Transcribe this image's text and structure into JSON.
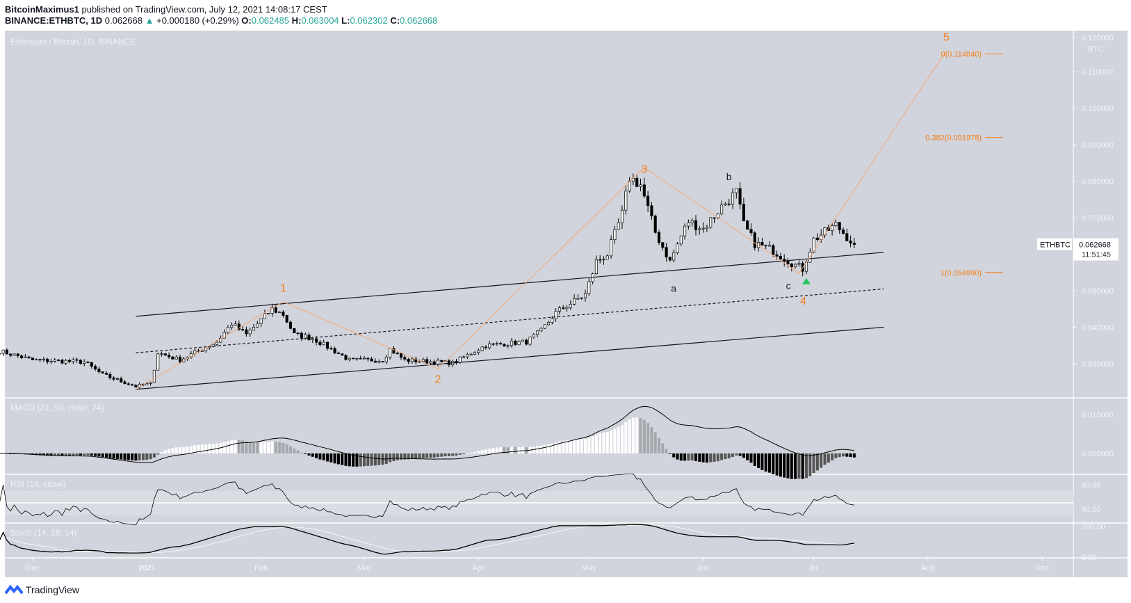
{
  "header": {
    "publisher": "BitcoinMaximus1",
    "published_text": "published on TradingView.com, July 12, 2021 14:08:17 CEST",
    "symbol": "BINANCE:ETHBTC, 1D",
    "last": "0.062668",
    "change": "+0.000180 (+0.29%)",
    "o": "0.062485",
    "h": "0.063004",
    "l": "0.062302",
    "c": "0.062668"
  },
  "footer": {
    "logo_text": "TradingView"
  },
  "chart_data": {
    "type": "candlestick",
    "title": "Ethereum / Bitcoin, 1D, BINANCE",
    "currency": "BTC",
    "y_ticks": [
      "0.120000",
      "0.110000",
      "0.100000",
      "0.090000",
      "0.080000",
      "0.070000",
      "0.050000",
      "0.040000",
      "0.030000"
    ],
    "ylim": [
      0.021,
      0.121
    ],
    "x_ticks": [
      {
        "label": "Dec",
        "date": "2020-12-01"
      },
      {
        "label": "2021",
        "date": "2021-01-01"
      },
      {
        "label": "Feb",
        "date": "2021-02-01"
      },
      {
        "label": "Mar",
        "date": "2021-03-01"
      },
      {
        "label": "Apr",
        "date": "2021-04-01"
      },
      {
        "label": "May",
        "date": "2021-05-01"
      },
      {
        "label": "Jun",
        "date": "2021-06-01"
      },
      {
        "label": "Jul",
        "date": "2021-07-01"
      },
      {
        "label": "Aug",
        "date": "2021-08-01"
      },
      {
        "label": "Sep",
        "date": "2021-09-01"
      }
    ],
    "close_path": [
      [
        "2020-11-22",
        0.0335
      ],
      [
        "2020-12-01",
        0.031
      ],
      [
        "2020-12-15",
        0.0305
      ],
      [
        "2020-12-20",
        0.027
      ],
      [
        "2020-12-29",
        0.0238
      ],
      [
        "2021-01-02",
        0.0245
      ],
      [
        "2021-01-04",
        0.033
      ],
      [
        "2021-01-10",
        0.031
      ],
      [
        "2021-01-20",
        0.036
      ],
      [
        "2021-01-24",
        0.041
      ],
      [
        "2021-01-28",
        0.038
      ],
      [
        "2021-02-04",
        0.045
      ],
      [
        "2021-02-07",
        0.0435
      ],
      [
        "2021-02-10",
        0.038
      ],
      [
        "2021-02-15",
        0.037
      ],
      [
        "2021-02-20",
        0.034
      ],
      [
        "2021-02-25",
        0.031
      ],
      [
        "2021-03-06",
        0.031
      ],
      [
        "2021-03-08",
        0.034
      ],
      [
        "2021-03-12",
        0.031
      ],
      [
        "2021-03-25",
        0.0302
      ],
      [
        "2021-04-01",
        0.034
      ],
      [
        "2021-04-03",
        0.035
      ],
      [
        "2021-04-14",
        0.036
      ],
      [
        "2021-04-18",
        0.039
      ],
      [
        "2021-04-22",
        0.044
      ],
      [
        "2021-04-30",
        0.049
      ],
      [
        "2021-05-03",
        0.058
      ],
      [
        "2021-05-06",
        0.06
      ],
      [
        "2021-05-10",
        0.071
      ],
      [
        "2021-05-12",
        0.081
      ],
      [
        "2021-05-15",
        0.079
      ],
      [
        "2021-05-19",
        0.066
      ],
      [
        "2021-05-23",
        0.058
      ],
      [
        "2021-05-26",
        0.065
      ],
      [
        "2021-05-28",
        0.069
      ],
      [
        "2021-06-01",
        0.067
      ],
      [
        "2021-06-06",
        0.073
      ],
      [
        "2021-06-10",
        0.077
      ],
      [
        "2021-06-12",
        0.068
      ],
      [
        "2021-06-15",
        0.063
      ],
      [
        "2021-06-20",
        0.061
      ],
      [
        "2021-06-26",
        0.057
      ],
      [
        "2021-06-28",
        0.056
      ],
      [
        "2021-07-01",
        0.064
      ],
      [
        "2021-07-07",
        0.068
      ],
      [
        "2021-07-12",
        0.062668
      ]
    ],
    "last_price_label": {
      "symbol": "ETHBTC",
      "price": "0.062668",
      "countdown": "11:51:45"
    },
    "channel": {
      "upper": [
        [
          "2020-12-29",
          0.043
        ],
        [
          "2021-07-20",
          0.0605
        ]
      ],
      "middle": [
        [
          "2020-12-29",
          0.033
        ],
        [
          "2021-07-20",
          0.0505
        ]
      ],
      "lower": [
        [
          "2020-12-29",
          0.023
        ],
        [
          "2021-07-20",
          0.04
        ]
      ]
    },
    "wave_path": [
      [
        "2020-12-29",
        0.023
      ],
      [
        "2021-02-07",
        0.047
      ],
      [
        "2021-03-21",
        0.0286
      ],
      [
        "2021-05-16",
        0.0838
      ],
      [
        "2021-06-27",
        0.0548
      ],
      [
        "2021-08-06",
        0.1158
      ]
    ],
    "wave_labels": [
      {
        "text": "1",
        "date": "2021-02-07",
        "price": 0.0497,
        "color": "#f57f17"
      },
      {
        "text": "2",
        "date": "2021-03-21",
        "price": 0.0248,
        "color": "#f57f17"
      },
      {
        "text": "3",
        "date": "2021-05-16",
        "price": 0.0823,
        "color": "#f57f17"
      },
      {
        "text": "4",
        "date": "2021-06-27",
        "price": 0.0473,
        "color": "#f57f17"
      },
      {
        "text": "5",
        "date": "2021-08-06",
        "price": 0.1185,
        "color": "#f57f17"
      },
      {
        "text": "a",
        "date": "2021-05-24",
        "price": 0.0497,
        "color": "#131722"
      },
      {
        "text": "b",
        "date": "2021-06-08",
        "price": 0.0803,
        "color": "#131722"
      },
      {
        "text": "c",
        "date": "2021-06-26",
        "price": 0.0497,
        "color": "#131722"
      }
    ],
    "fib_levels": [
      {
        "label": "0(0.114840)",
        "value": 0.11484
      },
      {
        "label": "0.382(0.091978)",
        "value": 0.091978
      },
      {
        "label": "1(0.054990)",
        "value": 0.05499
      }
    ],
    "signal_marker": {
      "date": "2021-06-29",
      "price": 0.0548,
      "color": "#22c55e"
    },
    "indicators": {
      "macd": {
        "title": "MACD (21, 50, close, 24)",
        "ticks": [
          "0.010000",
          "0.000000"
        ]
      },
      "rsi": {
        "title": "RSI (14, close)",
        "ticks": [
          "80.00",
          "40.00"
        ]
      },
      "stoch": {
        "title": "Stoch (14, 28, 14)",
        "ticks": [
          "100.00",
          "0.00"
        ]
      }
    },
    "colors": {
      "background": "#d1d4dc",
      "wave": "#f5a97a",
      "fib": "#f57f17",
      "up": "#ffffff",
      "down": "#000000"
    }
  }
}
